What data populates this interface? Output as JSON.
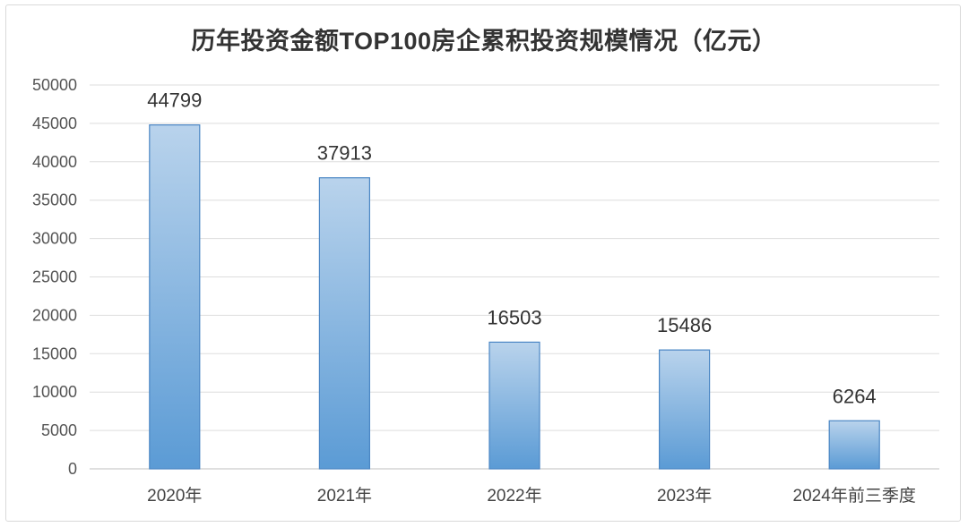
{
  "chart_data": {
    "type": "bar",
    "title": "历年投资金额TOP100房企累积投资规模情况（亿元）",
    "categories": [
      "2020年",
      "2021年",
      "2022年",
      "2023年",
      "2024年前三季度"
    ],
    "values": [
      44799,
      37913,
      16503,
      15486,
      6264
    ],
    "ylim": [
      0,
      50000
    ],
    "yticks": [
      0,
      5000,
      10000,
      15000,
      20000,
      25000,
      30000,
      35000,
      40000,
      45000,
      50000
    ],
    "grid": true,
    "legend": "none",
    "colors": {
      "bar_top": "#b9d3ec",
      "bar_bottom": "#5b9bd5",
      "bar_edge": "#4a86c4",
      "label": "#333333",
      "highlight_label": "#c00000",
      "grid": "#dddddd",
      "axis": "#bfbfbf"
    },
    "highlight_index": 4
  }
}
